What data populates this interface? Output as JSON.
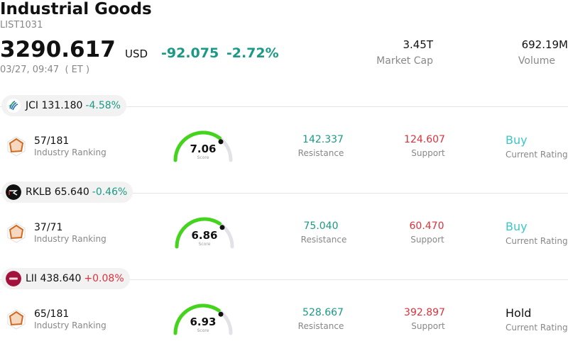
{
  "header": {
    "title": "Industrial Goods",
    "code": "LIST1031",
    "price": "3290.617",
    "currency": "USD",
    "change": "-92.075",
    "change_pct": "-2.72%",
    "time": "03/27, 09:47  ( ET )",
    "market_cap_value": "3.45T",
    "market_cap_label": "Market Cap",
    "volume_value": "692.19M",
    "volume_label": "Volume"
  },
  "stocks": [
    {
      "ticker": "JCI",
      "price": "131.180",
      "change": "-4.58%",
      "direction": "down",
      "logo": "jci-globe-icon",
      "ranking": "57/181",
      "ranking_label": "Industry Ranking",
      "score": "7.06",
      "score_fraction": 0.706,
      "score_label": "Score",
      "resistance": "142.337",
      "resistance_label": "Resistance",
      "support": "124.607",
      "support_label": "Support",
      "rating": "Buy",
      "rating_label": "Current Rating"
    },
    {
      "ticker": "RKLB",
      "price": "65.640",
      "change": "-0.46%",
      "direction": "down",
      "logo": "rocketlab-icon",
      "ranking": "37/71",
      "ranking_label": "Industry Ranking",
      "score": "6.86",
      "score_fraction": 0.686,
      "score_label": "Score",
      "resistance": "75.040",
      "resistance_label": "Resistance",
      "support": "60.470",
      "support_label": "Support",
      "rating": "Buy",
      "rating_label": "Current Rating"
    },
    {
      "ticker": "LII",
      "price": "438.640",
      "change": "+0.08%",
      "direction": "up",
      "logo": "lennox-icon",
      "ranking": "65/181",
      "ranking_label": "Industry Ranking",
      "score": "6.93",
      "score_fraction": 0.693,
      "score_label": "Score",
      "resistance": "528.667",
      "resistance_label": "Resistance",
      "support": "392.897",
      "support_label": "Support",
      "rating": "Hold",
      "rating_label": "Current Rating"
    }
  ],
  "colors": {
    "down": "#1a9a84",
    "up": "#e0303a",
    "gauge": "#44d41c",
    "gauge_track": "#e2e2e8",
    "buy": "#3cc6c6",
    "hold": "#111111",
    "ranking_icon": "#d2691e"
  }
}
